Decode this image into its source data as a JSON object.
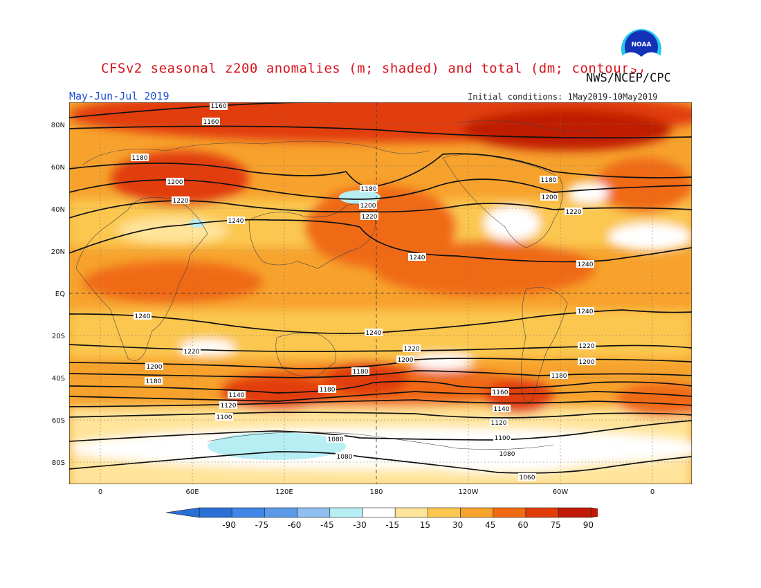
{
  "header": {
    "title": "CFSv2 seasonal z200 anomalies (m; shaded) and total (dm; contours)",
    "agency": "NWS/NCEP/CPC",
    "period": "May-Jun-Jul 2019",
    "initial_conditions": "Initial conditions: 1May2019-10May2019",
    "logo_text": "NOAA"
  },
  "lat_labels": [
    "80N",
    "60N",
    "40N",
    "20N",
    "EQ",
    "20S",
    "40S",
    "60S",
    "80S"
  ],
  "lon_labels": [
    "0",
    "60E",
    "120E",
    "180",
    "120W",
    "60W",
    "0"
  ],
  "colorbar": {
    "labels": [
      "-90",
      "-75",
      "-60",
      "-45",
      "-30",
      "-15",
      "15",
      "30",
      "45",
      "60",
      "75",
      "90"
    ],
    "colors": [
      "#2a6fd6",
      "#3f86e6",
      "#5a9ae8",
      "#8fbff0",
      "#b7eef4",
      "#ffffff",
      "#ffe49a",
      "#fbc74f",
      "#f7a22d",
      "#f06a12",
      "#e23c08",
      "#c01a06"
    ]
  },
  "contour_labels": {
    "c1160a": "1160",
    "c1160b": "1160",
    "c1180a": "1180",
    "c1200a": "1200",
    "c1220a": "1220",
    "c1240a": "1240",
    "c1180b": "1180",
    "c1200b": "1200",
    "c1220b": "1220",
    "c1180c": "1180",
    "c1200c": "1200",
    "c1220c": "1220",
    "c1240b": "1240",
    "c1240c": "1240",
    "c1240d": "1240",
    "c1240e": "1240",
    "c1240f": "1240",
    "c1220d": "1220",
    "c1220e": "1220",
    "c1200d": "1200",
    "c1220f": "1220",
    "c1200e": "1200",
    "c1200f": "1200",
    "c1180d": "1180",
    "c1180e": "1180",
    "c1180f": "1180",
    "c1180g": "1180",
    "c1160c": "1160",
    "c1140a": "1140",
    "c1140b": "1140",
    "c1120a": "1120",
    "c1120b": "1120",
    "c1100a": "1100",
    "c1100b": "1100",
    "c1080a": "1080",
    "c1080b": "1080",
    "c1080c": "1080",
    "c1060a": "1060"
  }
}
